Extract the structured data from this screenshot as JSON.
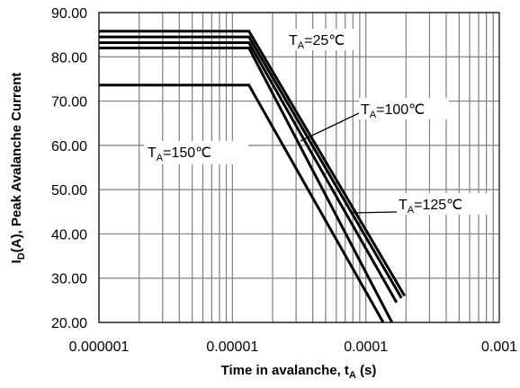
{
  "chart_data": {
    "type": "line",
    "xlabel": {
      "main": "Time in avalanche, t",
      "sub": "A",
      "suffix": " (s)"
    },
    "ylabel": {
      "main": "I",
      "sub": "D",
      "suffix": "(A), Peak Avalanche Current"
    },
    "x_scale": "log",
    "xlim": [
      1e-06,
      0.001
    ],
    "ylim": [
      20,
      90
    ],
    "x_tick_labels": [
      "0.000001",
      "0.00001",
      "0.0001",
      "0.001"
    ],
    "y_tick_labels": [
      "20.00",
      "30.00",
      "40.00",
      "50.00",
      "60.00",
      "70.00",
      "80.00",
      "90.00"
    ],
    "grid": true,
    "series": [
      {
        "name": "TA=25℃",
        "x": [
          1e-06,
          1.33e-05,
          0.000195
        ],
        "y": [
          85.8,
          85.8,
          26.0
        ]
      },
      {
        "name": "TA=100℃",
        "x": [
          1e-06,
          1.33e-05,
          0.000185
        ],
        "y": [
          84.5,
          84.5,
          25.5
        ]
      },
      {
        "name": "TA=125℃",
        "x": [
          1e-06,
          1.33e-05,
          0.00017
        ],
        "y": [
          83.2,
          83.2,
          24.5
        ]
      },
      {
        "name": "TA=150℃",
        "x": [
          1e-06,
          1.33e-05,
          0.000135
        ],
        "y": [
          73.6,
          73.6,
          20.0
        ]
      },
      {
        "x": [
          1e-06,
          1.33e-05,
          0.000157
        ],
        "y": [
          82.0,
          82.0,
          20.0
        ]
      }
    ],
    "annotations": [
      {
        "base": "T",
        "sub": "A",
        "rest": "=25℃"
      },
      {
        "base": "T",
        "sub": "A",
        "rest": "=100℃"
      },
      {
        "base": "T",
        "sub": "A",
        "rest": "=125℃"
      },
      {
        "base": "T",
        "sub": "A",
        "rest": "=150℃"
      }
    ]
  }
}
